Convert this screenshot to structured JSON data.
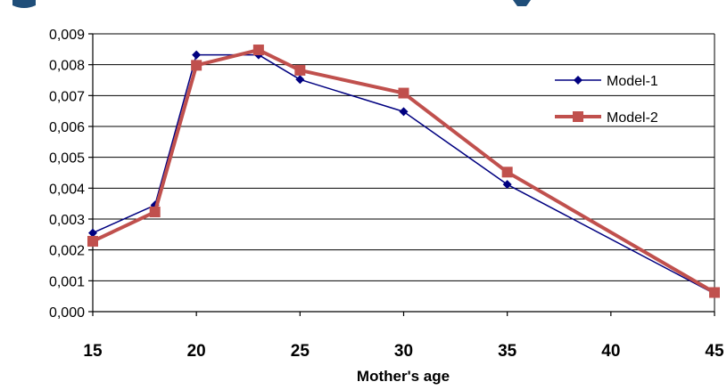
{
  "colors": {
    "model1": "#000080",
    "model2": "#c0504d",
    "decor": "#1f4e79"
  },
  "chart_data": {
    "type": "line",
    "title": "",
    "xlabel": "Mother's age",
    "ylabel": "",
    "xlim": [
      15,
      45
    ],
    "ylim": [
      0,
      0.009
    ],
    "grid": true,
    "legend_position": "right",
    "xticks": [
      15,
      20,
      25,
      30,
      35,
      40,
      45
    ],
    "xtick_labels": [
      "15",
      "20",
      "25",
      "30",
      "35",
      "40",
      "45"
    ],
    "yticks": [
      0,
      0.001,
      0.002,
      0.003,
      0.004,
      0.005,
      0.006,
      0.007,
      0.008,
      0.009
    ],
    "ytick_labels": [
      "0,000",
      "0,001",
      "0,002",
      "0,003",
      "0,004",
      "0,005",
      "0,006",
      "0,007",
      "0,008",
      "0,009"
    ],
    "series": [
      {
        "name": "Model-1",
        "marker": "diamond",
        "x": [
          15,
          18,
          20,
          23,
          25,
          30,
          35,
          45
        ],
        "y": [
          0.00255,
          0.00345,
          0.00832,
          0.00832,
          0.00752,
          0.00648,
          0.00412,
          0.00058
        ]
      },
      {
        "name": "Model-2",
        "marker": "square",
        "x": [
          15,
          18,
          20,
          23,
          25,
          30,
          35,
          45
        ],
        "y": [
          0.00228,
          0.00323,
          0.00798,
          0.00848,
          0.00782,
          0.00708,
          0.00452,
          0.00062
        ]
      }
    ]
  }
}
